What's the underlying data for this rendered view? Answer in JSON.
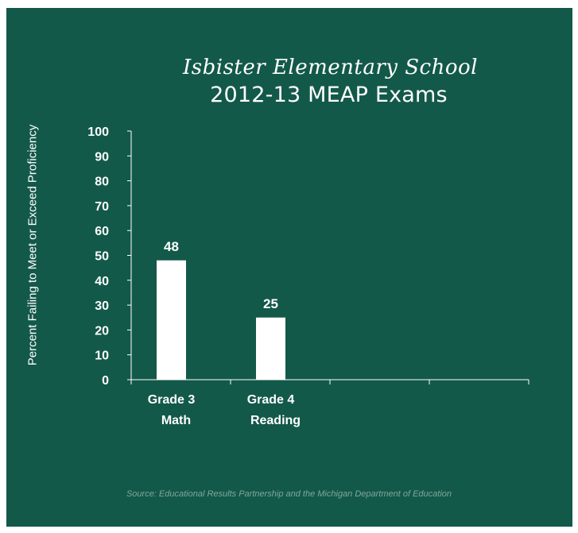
{
  "chart_data": {
    "type": "bar",
    "title": "Isbister Elementary School",
    "subtitle": "2012-13 MEAP Exams",
    "ylabel": "Percent Failing to Meet or Exceed Proficiency",
    "xlabel": "",
    "ylim": [
      0,
      100
    ],
    "yticks": [
      "0",
      "10",
      "20",
      "30",
      "40",
      "50",
      "60",
      "70",
      "80",
      "90",
      "100"
    ],
    "categories": [
      [
        "Grade 3",
        "Math"
      ],
      [
        "Grade 4",
        "Reading"
      ],
      [
        "",
        ""
      ],
      [
        "",
        ""
      ]
    ],
    "values": [
      48,
      25,
      null,
      null
    ],
    "data_labels": [
      "48",
      "25",
      "",
      ""
    ],
    "grid": false,
    "source": "Source: Educational Results Partnership and the Michigan Department of Education"
  },
  "colors": {
    "background": "#13594a",
    "bars": "#ffffff",
    "text": "#ffffff",
    "source_text": "#7fa79b"
  }
}
